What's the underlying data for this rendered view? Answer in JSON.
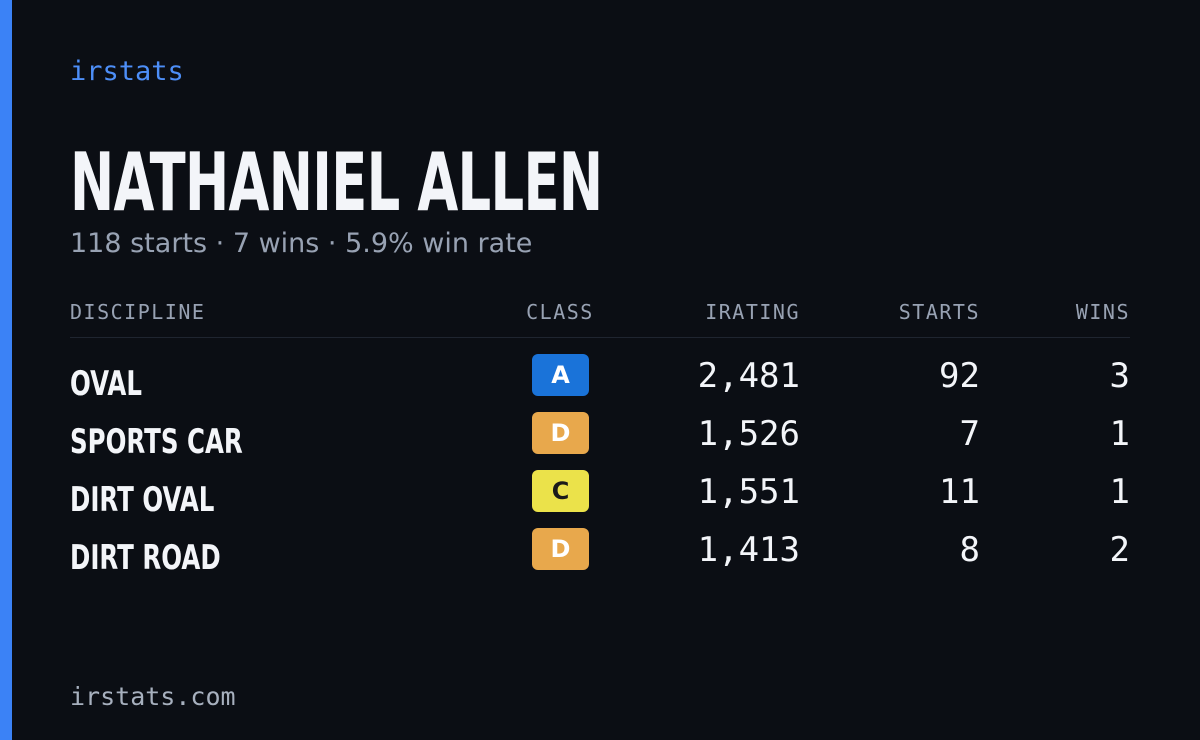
{
  "brand": "irstats",
  "driver": {
    "name": "NATHANIEL ALLEN",
    "summary": "118 starts · 7 wins · 5.9% win rate"
  },
  "table": {
    "headers": [
      "DISCIPLINE",
      "CLASS",
      "IRATING",
      "STARTS",
      "WINS"
    ],
    "rows": [
      {
        "discipline": "OVAL",
        "class": {
          "label": "A",
          "color": "#1a73d9",
          "text_color": "#ffffff"
        },
        "irating": "2,481",
        "starts": "92",
        "wins": "3"
      },
      {
        "discipline": "SPORTS CAR",
        "class": {
          "label": "D",
          "color": "#e8a84c",
          "text_color": "#ffffff"
        },
        "irating": "1,526",
        "starts": "7",
        "wins": "1"
      },
      {
        "discipline": "DIRT OVAL",
        "class": {
          "label": "C",
          "color": "#ebe24a",
          "text_color": "#1a1a1a"
        },
        "irating": "1,551",
        "starts": "11",
        "wins": "1"
      },
      {
        "discipline": "DIRT ROAD",
        "class": {
          "label": "D",
          "color": "#e8a84c",
          "text_color": "#ffffff"
        },
        "irating": "1,413",
        "starts": "8",
        "wins": "2"
      }
    ]
  },
  "footer": "irstats.com"
}
